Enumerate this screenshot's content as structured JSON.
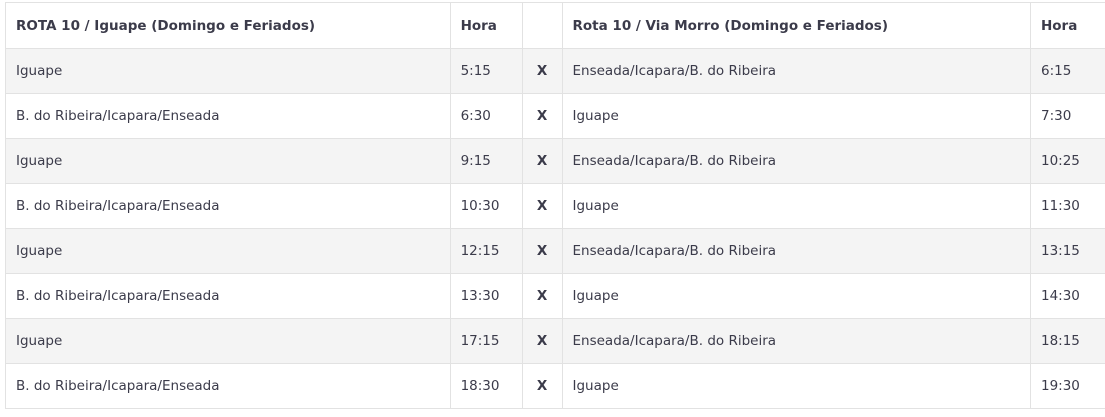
{
  "headers": [
    "ROTA 10 / Iguape (Domingo e Feriados)",
    "Hora",
    "",
    "Rota 10 / Via Morro (Domingo e Feriados)",
    "Hora"
  ],
  "rows": [
    [
      "Iguape",
      "5:15",
      "X",
      "Enseada/Icapara/B. do Ribeira",
      "6:15"
    ],
    [
      "B. do Ribeira/Icapara/Enseada",
      "6:30",
      "X",
      "Iguape",
      "7:30"
    ],
    [
      "Iguape",
      "9:15",
      "X",
      "Enseada/Icapara/B. do Ribeira",
      "10:25"
    ],
    [
      "B. do Ribeira/Icapara/Enseada",
      "10:30",
      "X",
      "Iguape",
      "11:30"
    ],
    [
      "Iguape",
      "12:15",
      "X",
      "Enseada/Icapara/B. do Ribeira",
      "13:15"
    ],
    [
      "B. do Ribeira/Icapara/Enseada",
      "13:30",
      "X",
      "Iguape",
      "14:30"
    ],
    [
      "Iguape",
      "17:15",
      "X",
      "Enseada/Icapara/B. do Ribeira",
      "18:15"
    ],
    [
      "B. do Ribeira/Icapara/Enseada",
      "18:30",
      "X",
      "Iguape",
      "19:30"
    ]
  ]
}
